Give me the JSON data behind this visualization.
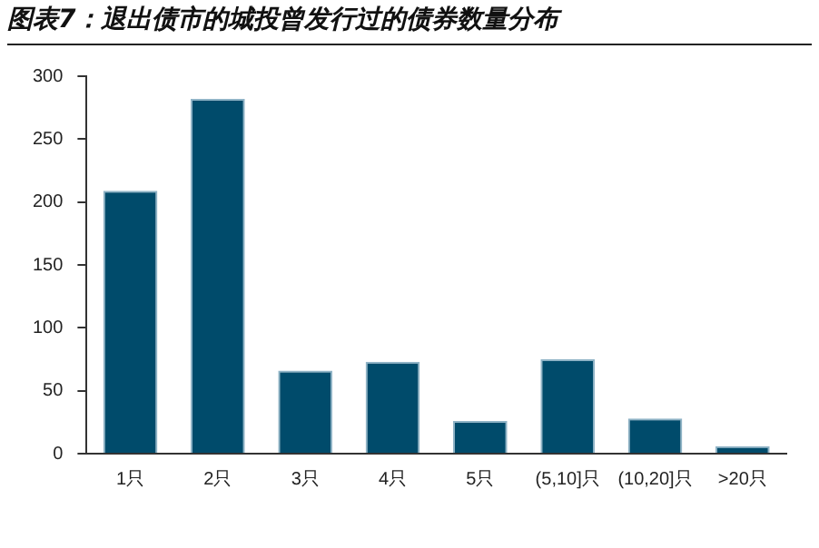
{
  "chart_data": {
    "type": "bar",
    "title": "图表7：退出债市的城投曾发行过的债券数量分布",
    "categories": [
      "1只",
      "2只",
      "3只",
      "4只",
      "5只",
      "(5,10]只",
      "(10,20]只",
      ">20只"
    ],
    "values": [
      209,
      282,
      66,
      73,
      26,
      75,
      28,
      6
    ],
    "color": "#004b6b",
    "ylim": [
      0,
      300
    ],
    "yticks": [
      0,
      50,
      100,
      150,
      200,
      250,
      300
    ],
    "grid": false,
    "legend": false
  }
}
